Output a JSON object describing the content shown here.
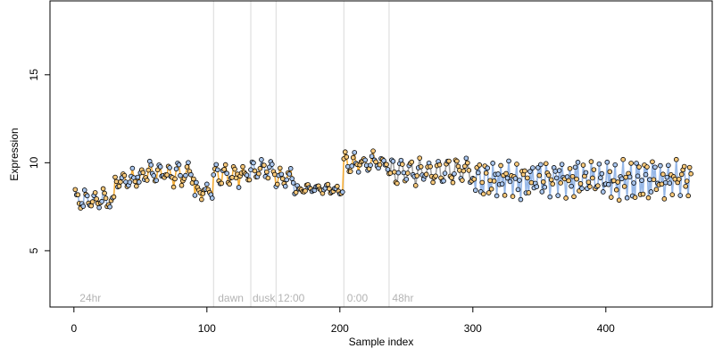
{
  "chart_data": {
    "type": "scatter",
    "title": "",
    "xlabel": "Sample index",
    "ylabel": "Expression",
    "xlim": [
      -18,
      480
    ],
    "ylim": [
      1.8,
      19.2
    ],
    "xticks": [
      0,
      100,
      200,
      300,
      400
    ],
    "yticks": [
      5,
      10,
      15
    ],
    "grid": false,
    "legend": "none",
    "colors": {
      "point_stroke": "#000000",
      "segment_orange": "#f5a623",
      "segment_blue": "#8fb3e6",
      "segment_gray": "#9a9a9a",
      "vline": "#d9d9d9",
      "phase_text": "#b3b3b3"
    },
    "vlines": [
      105,
      133,
      152,
      203,
      237
    ],
    "phase_labels": [
      {
        "x": 3,
        "text": "24hr"
      },
      {
        "x": 107,
        "text": "dawn"
      },
      {
        "x": 133,
        "text": "dusk"
      },
      {
        "x": 152,
        "text": "12:00"
      },
      {
        "x": 204,
        "text": "0:00"
      },
      {
        "x": 238,
        "text": "48hr"
      }
    ],
    "series": [
      {
        "x_start": 1,
        "x_end": 30,
        "mean": 7.9,
        "amp": 0.35,
        "freq": 0.9,
        "noise": 0.28,
        "segment": "blue",
        "alt": false
      },
      {
        "x_start": 31,
        "x_end": 50,
        "mean": 9.1,
        "amp": 0.4,
        "freq": 0.9,
        "noise": 0.35,
        "segment": "orange",
        "alt": false
      },
      {
        "x_start": 51,
        "x_end": 90,
        "mean": 9.4,
        "amp": 0.45,
        "freq": 0.9,
        "noise": 0.35,
        "segment": "orange",
        "alt": false
      },
      {
        "x_start": 91,
        "x_end": 104,
        "mean": 8.3,
        "amp": 0.3,
        "freq": 0.9,
        "noise": 0.3,
        "segment": "orange",
        "alt": false
      },
      {
        "x_start": 105,
        "x_end": 132,
        "mean": 9.3,
        "amp": 0.45,
        "freq": 0.9,
        "noise": 0.3,
        "segment": "orange",
        "alt": false
      },
      {
        "x_start": 133,
        "x_end": 151,
        "mean": 9.6,
        "amp": 0.35,
        "freq": 0.9,
        "noise": 0.25,
        "segment": "blue",
        "alt": false
      },
      {
        "x_start": 152,
        "x_end": 165,
        "mean": 9.2,
        "amp": 0.4,
        "freq": 0.9,
        "noise": 0.3,
        "segment": "orange",
        "alt": false
      },
      {
        "x_start": 166,
        "x_end": 202,
        "mean": 8.5,
        "amp": 0.2,
        "freq": 0.9,
        "noise": 0.2,
        "segment": "blue",
        "alt": false
      },
      {
        "x_start": 203,
        "x_end": 236,
        "mean": 10.0,
        "amp": 0.35,
        "freq": 0.9,
        "noise": 0.3,
        "segment": "orange",
        "alt": false
      },
      {
        "x_start": 237,
        "x_end": 300,
        "mean": 9.5,
        "amp": 0.55,
        "freq": 0.9,
        "noise": 0.3,
        "segment": "gray",
        "alt": false
      },
      {
        "x_start": 301,
        "x_end": 464,
        "mean": 9.05,
        "amp": 0.55,
        "freq": 1.1,
        "noise": 0.32,
        "segment": "blue",
        "alt": true
      }
    ]
  }
}
